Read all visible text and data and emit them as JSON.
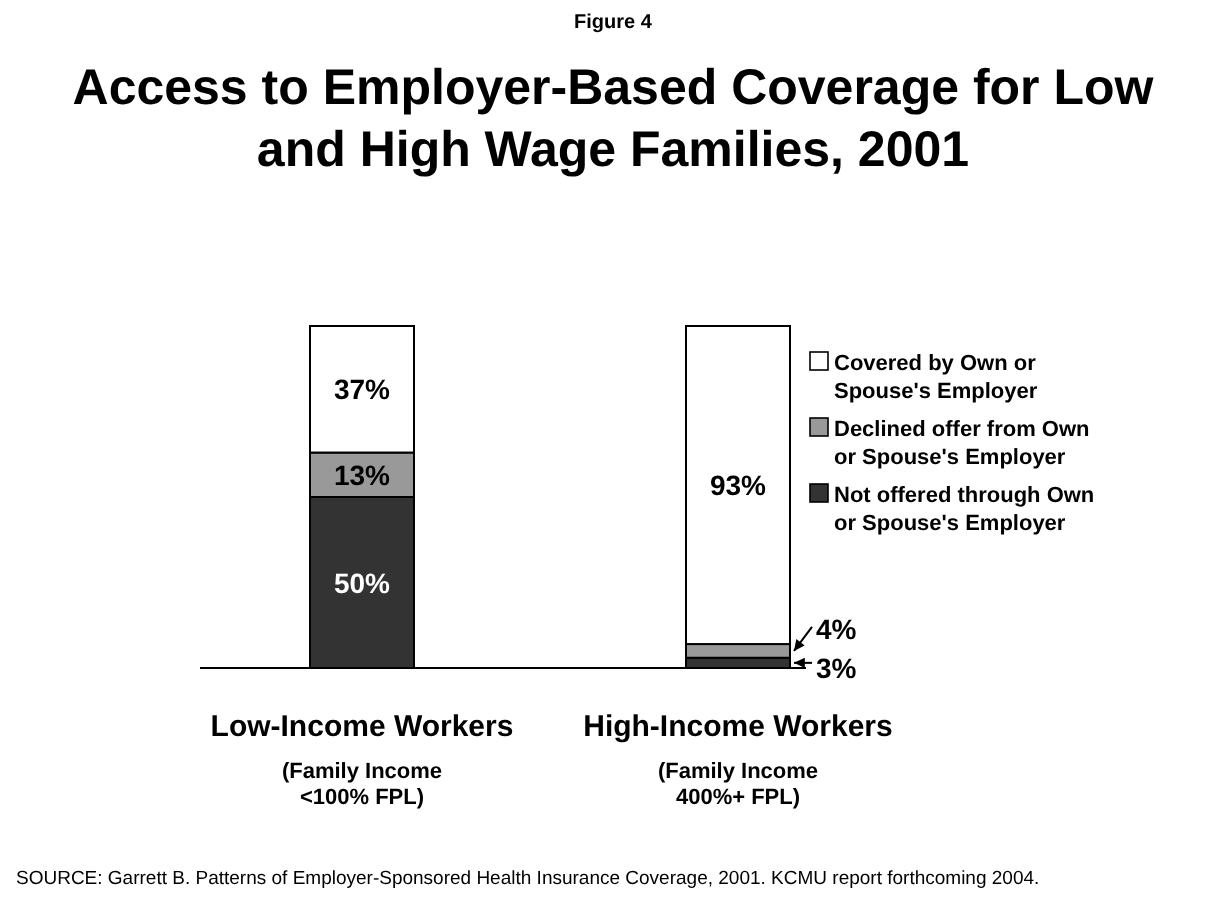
{
  "chart_data": {
    "type": "bar",
    "stacked": true,
    "subtitle": "Figure 4",
    "title": "Access to Employer-Based Coverage for Low and High Wage Families, 2001",
    "categories": [
      "Low-Income Workers\n(Family Income\n<100% FPL)",
      "High-Income Workers\n(Family Income\n400%+ FPL)"
    ],
    "series": [
      {
        "name": "Not offered through Own or Spouse's Employer",
        "color": "#333333",
        "values": [
          50,
          3
        ],
        "value_labels": [
          "50%",
          "3%"
        ]
      },
      {
        "name": "Declined offer from Own or Spouse's Employer",
        "color": "#999999",
        "values": [
          13,
          4
        ],
        "value_labels": [
          "13%",
          "4%"
        ]
      },
      {
        "name": "Covered by Own or Spouse's Employer",
        "color": "#ffffff",
        "values": [
          37,
          93
        ],
        "value_labels": [
          "37%",
          "93%"
        ]
      }
    ],
    "legend": "right",
    "grid": false,
    "annotations": [
      "SOURCE: Garrett B. Patterns of Employer-Sponsored Health Insurance Coverage, 2001. KCMU report forthcoming 2004."
    ]
  }
}
